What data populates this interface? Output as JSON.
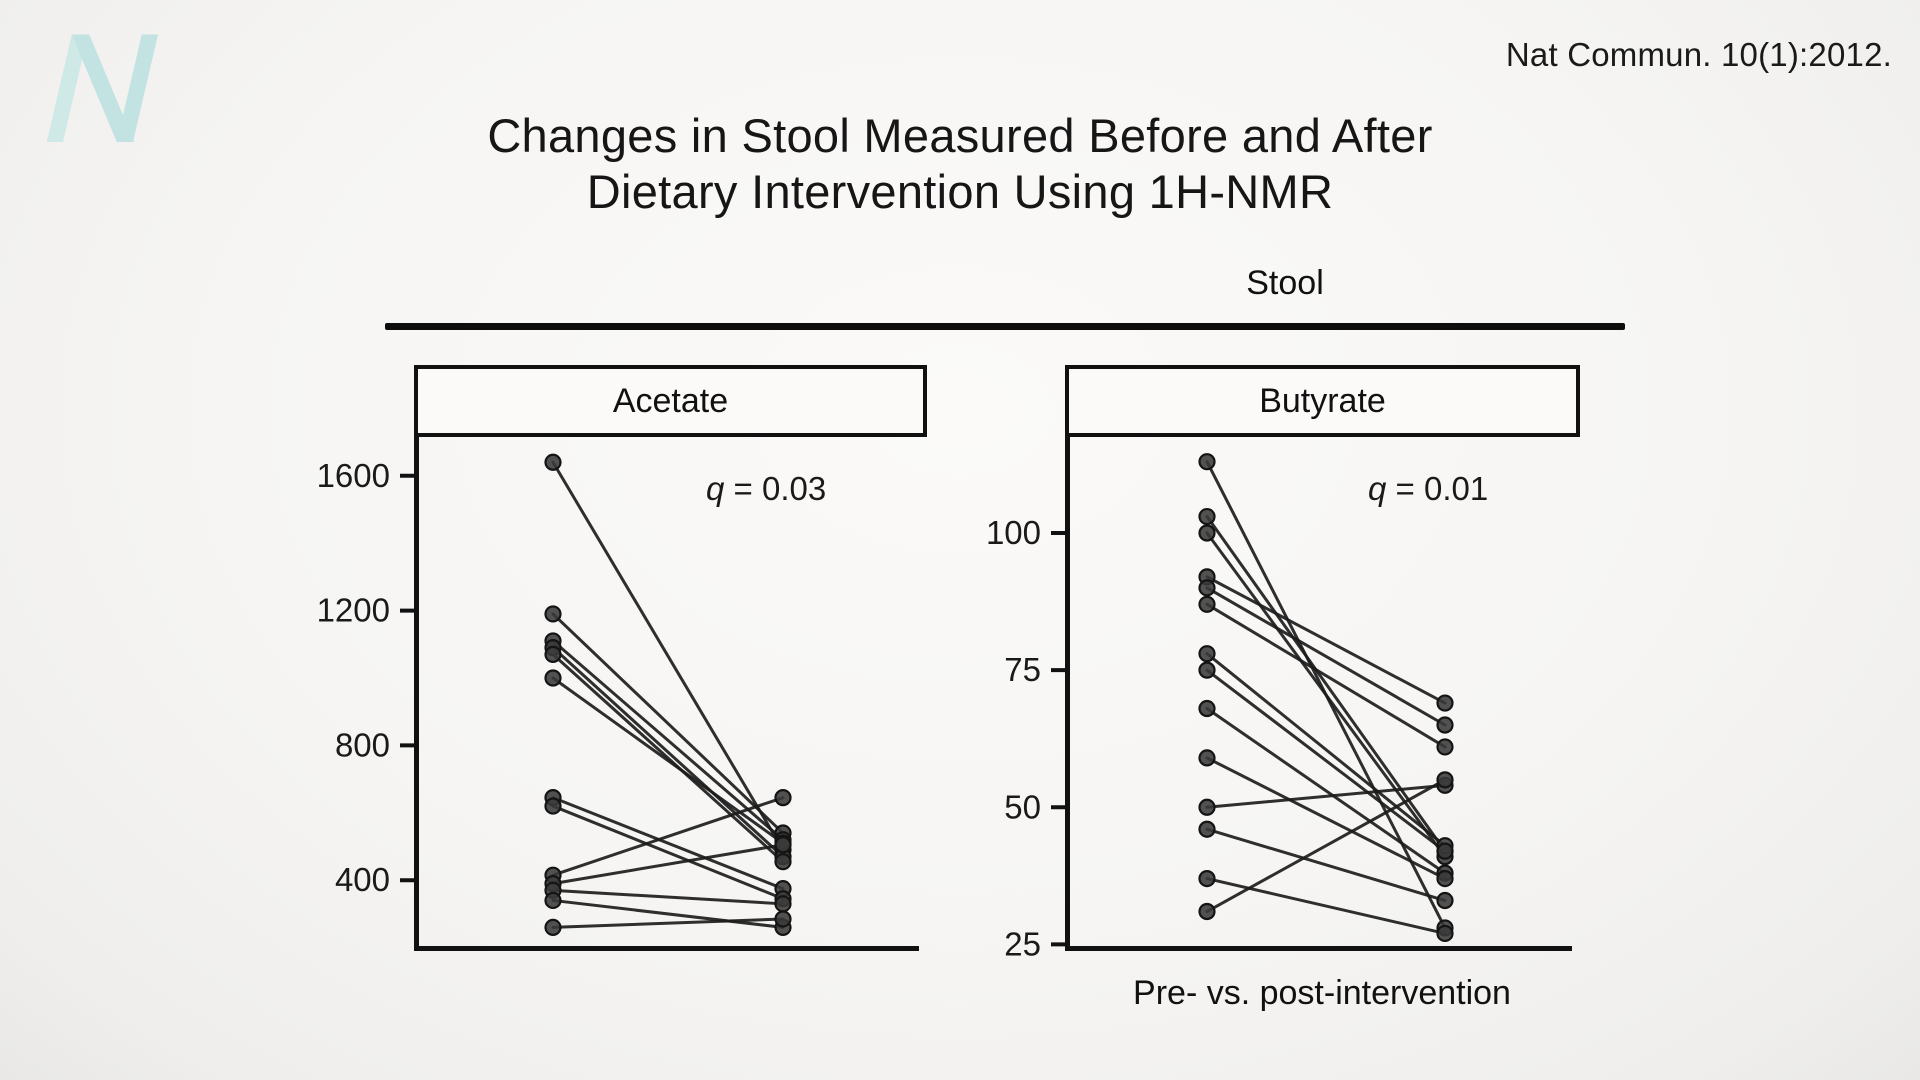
{
  "page": {
    "citation": "Nat Commun. 10(1):2012.",
    "title_line1": "Changes in Stool Measured Before and After",
    "title_line2": "Dietary Intervention Using 1H-NMR",
    "section_label": "Stool",
    "x_axis_label": "Pre- vs. post-intervention",
    "logo_letter": "N"
  },
  "colors": {
    "text": "#1a1a1a",
    "axis": "#111111",
    "line": "#1c1c1c",
    "point_fill": "#3a3a3a",
    "point_edge": "#141414",
    "logo_teal": "#c6e6e3",
    "panel_background": "#fbfaf9",
    "rule": "#0d0d0d"
  },
  "chart_data": [
    {
      "type": "scatter",
      "subtype": "paired-slope-plot",
      "title": "Acetate",
      "annotation": {
        "variable": "q",
        "text": " = 0.03"
      },
      "categories": [
        "Pre",
        "Post"
      ],
      "yticks": [
        400,
        800,
        1200,
        1600
      ],
      "ylim": [
        190,
        1715
      ],
      "grid": false,
      "legend": false,
      "pairs": [
        [
          1640,
          490
        ],
        [
          1190,
          540
        ],
        [
          1110,
          520
        ],
        [
          1090,
          470
        ],
        [
          1070,
          455
        ],
        [
          1000,
          510
        ],
        [
          645,
          375
        ],
        [
          620,
          345
        ],
        [
          415,
          645
        ],
        [
          390,
          505
        ],
        [
          370,
          330
        ],
        [
          340,
          260
        ],
        [
          260,
          285
        ]
      ]
    },
    {
      "type": "scatter",
      "subtype": "paired-slope-plot",
      "title": "Butyrate",
      "annotation": {
        "variable": "q",
        "text": " = 0.01"
      },
      "categories": [
        "Pre",
        "Post"
      ],
      "yticks": [
        25,
        50,
        75,
        100
      ],
      "ylim": [
        23.8,
        117.5
      ],
      "grid": false,
      "legend": false,
      "pairs": [
        [
          113,
          28
        ],
        [
          103,
          42
        ],
        [
          100,
          41
        ],
        [
          92,
          69
        ],
        [
          90,
          65
        ],
        [
          87,
          61
        ],
        [
          78,
          43
        ],
        [
          75,
          42
        ],
        [
          68,
          38
        ],
        [
          59,
          37
        ],
        [
          50,
          54
        ],
        [
          46,
          33
        ],
        [
          37,
          27
        ],
        [
          31,
          55
        ]
      ]
    }
  ]
}
